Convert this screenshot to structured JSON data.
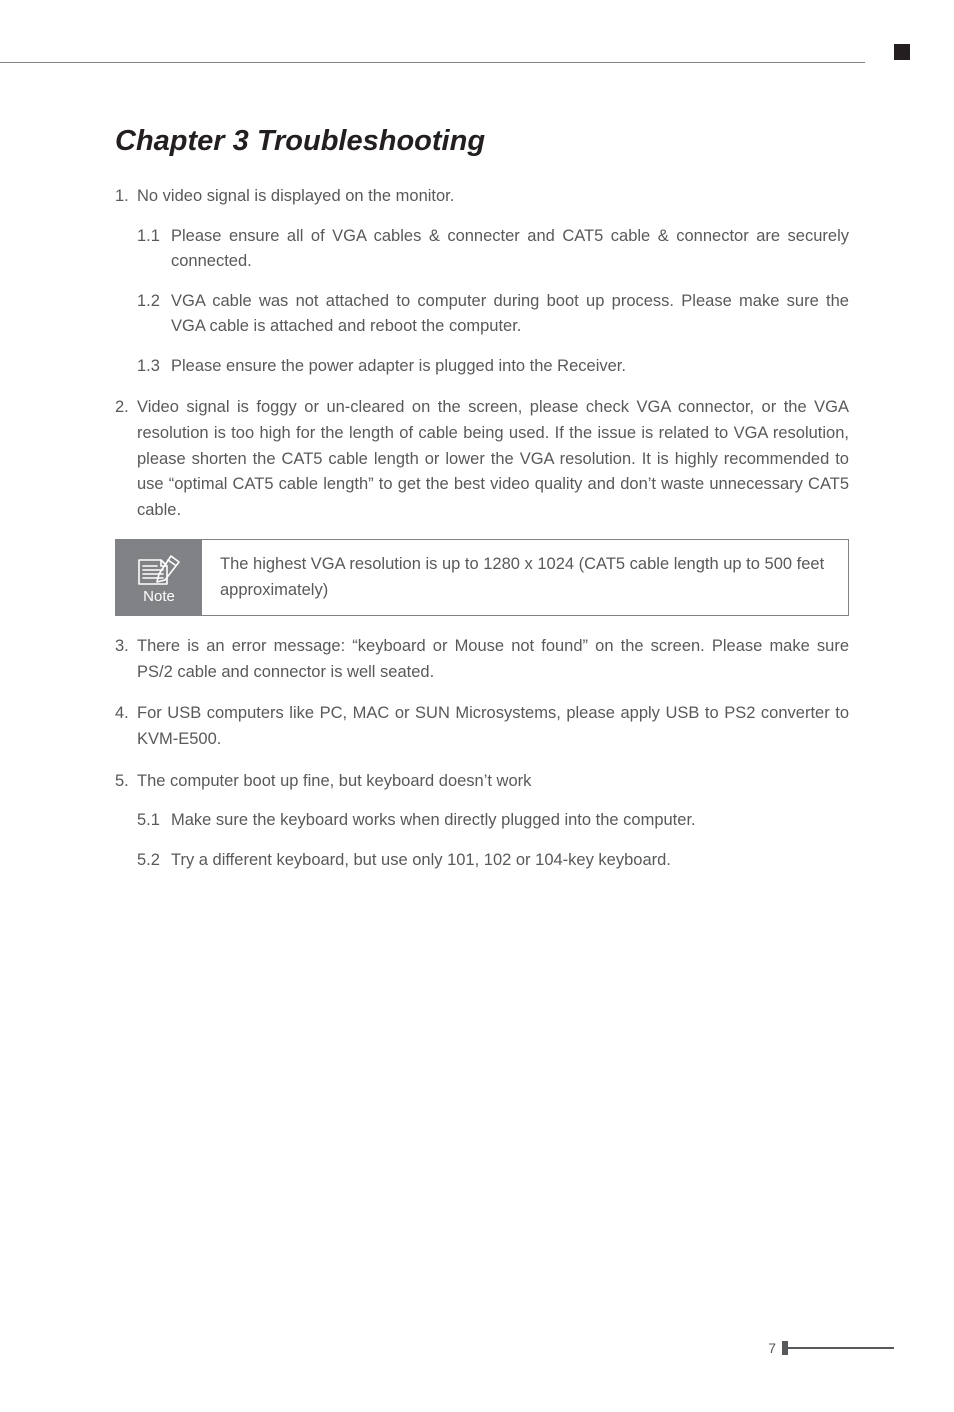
{
  "page": {
    "background": "#ffffff",
    "text_color": "#58595b",
    "heading_color": "#231f20",
    "rule_color": "#808285",
    "note_bg": "#808285",
    "note_fg": "#ffffff",
    "font_body": "Verdana, Geneva, sans-serif",
    "font_heading": "Arial, Helvetica, sans-serif",
    "body_fontsize": 16.5,
    "heading_fontsize": 29,
    "page_number": "7"
  },
  "title": "Chapter 3 Troubleshooting",
  "items": [
    {
      "num": "1.",
      "text": "No video signal is displayed on the monitor.",
      "subs": [
        {
          "num": "1.1",
          "text": "Please ensure all of VGA cables & connecter and CAT5 cable & connector are securely connected."
        },
        {
          "num": "1.2",
          "text": "VGA cable was not attached to computer during boot up process. Please make sure the VGA cable is attached and reboot the computer."
        },
        {
          "num": "1.3",
          "text": "Please ensure the power adapter is plugged into the Receiver."
        }
      ]
    },
    {
      "num": "2.",
      "text": "Video signal is foggy or un-cleared on the screen, please check VGA connector, or the VGA resolution is too high for the length of cable being used. If the issue is related to VGA resolution, please shorten the CAT5 cable length or lower the VGA resolution. It is highly recommended to use “optimal CAT5 cable length” to get the best video quality and don’t waste unnecessary CAT5 cable."
    }
  ],
  "note": {
    "label": "Note",
    "text": "The highest VGA resolution is up to 1280 x 1024 (CAT5 cable length up to 500 feet approximately)"
  },
  "items2": [
    {
      "num": "3.",
      "text": "There is an error message: “keyboard or Mouse not found” on the screen. Please make sure PS/2 cable and connector is well seated."
    },
    {
      "num": "4.",
      "text": "For USB computers like PC, MAC or SUN Microsystems, please apply USB to PS2 converter to KVM-E500."
    },
    {
      "num": "5.",
      "text": "The computer boot up fine, but keyboard doesn’t work",
      "subs": [
        {
          "num": "5.1",
          "text": "Make sure the keyboard works when directly plugged into the computer."
        },
        {
          "num": "5.2",
          "text": "Try a different keyboard, but use only 101, 102 or 104-key keyboard."
        }
      ]
    }
  ]
}
